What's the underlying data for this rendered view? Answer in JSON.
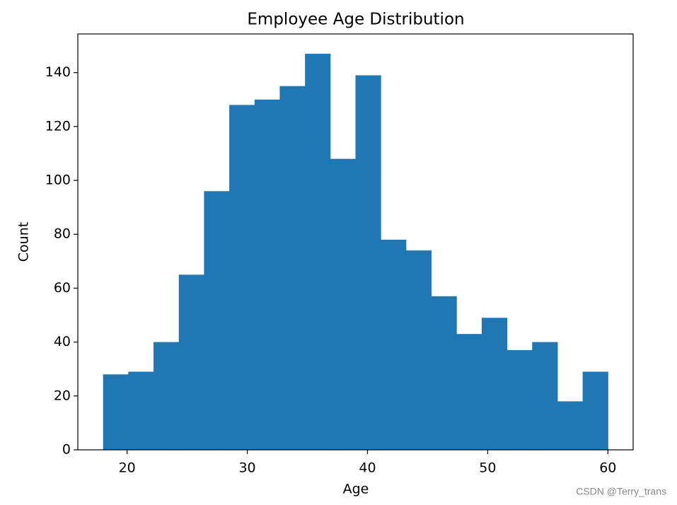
{
  "chart_data": {
    "type": "histogram",
    "title": "Employee Age Distribution",
    "x_label": "Age",
    "y_label": "Count",
    "bins": [
      18,
      20.1,
      22.2,
      24.3,
      26.4,
      28.5,
      30.6,
      32.7,
      34.8,
      36.9,
      39,
      41.1,
      43.2,
      45.3,
      47.4,
      49.5,
      51.6,
      53.7,
      55.8,
      57.9,
      60
    ],
    "values": [
      28,
      29,
      40,
      65,
      96,
      128,
      130,
      135,
      147,
      108,
      139,
      78,
      74,
      57,
      43,
      49,
      37,
      40,
      18,
      29
    ],
    "color": "#1f77b4",
    "xlim": [
      15.9,
      62.1
    ],
    "xticks": [
      20,
      30,
      40,
      50,
      60
    ],
    "ylim": [
      0,
      154.35
    ],
    "yticks": [
      0,
      20,
      40,
      60,
      80,
      100,
      120,
      140
    ],
    "grid": false
  },
  "watermark": "CSDN @Terry_trans"
}
